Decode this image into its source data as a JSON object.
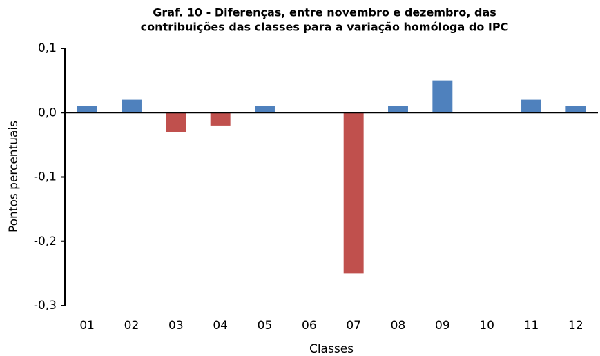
{
  "chart_data": {
    "type": "bar",
    "title": [
      "Graf. 10 - Diferenças, entre novembro e dezembro, das",
      "contribuições das classes para a variação homóloga do IPC"
    ],
    "x_label": "Classes",
    "y_label": "Pontos percentuais",
    "categories": [
      "01",
      "02",
      "03",
      "04",
      "05",
      "06",
      "07",
      "08",
      "09",
      "10",
      "11",
      "12"
    ],
    "values": [
      0.01,
      0.02,
      -0.03,
      -0.02,
      0.01,
      0,
      -0.25,
      0.01,
      0.05,
      0,
      0.02,
      0.01
    ],
    "colors": [
      "#4f81bd",
      "#4f81bd",
      "#c0504d",
      "#c0504d",
      "#4f81bd",
      "#4f81bd",
      "#c0504d",
      "#4f81bd",
      "#4f81bd",
      "#4f81bd",
      "#4f81bd",
      "#4f81bd"
    ],
    "ylim": [
      -0.3,
      0.1
    ],
    "yticks": [
      {
        "value": -0.3,
        "label": "-0,3"
      },
      {
        "value": -0.2,
        "label": "-0,2"
      },
      {
        "value": -0.1,
        "label": "-0,1"
      },
      {
        "value": 0,
        "label": "0,0"
      },
      {
        "value": 0.1,
        "label": "0,1"
      }
    ],
    "grid": false
  }
}
